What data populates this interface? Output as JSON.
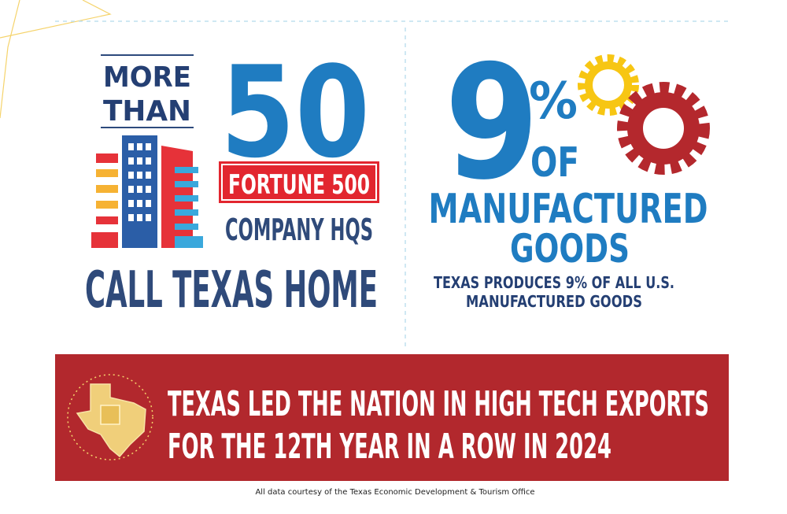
{
  "left_panel": {
    "lead": [
      "MORE",
      "THAN"
    ],
    "number": "50",
    "badge": "FORTUNE 500",
    "subject": "COMPANY HQS",
    "closing": "CALL TEXAS HOME"
  },
  "right_panel": {
    "number": "9",
    "unit": "%",
    "connector": "OF",
    "subject": [
      "MANUFACTURED",
      "GOODS"
    ],
    "caption": [
      "TEXAS PRODUCES 9% OF ALL U.S.",
      "MANUFACTURED GOODS"
    ]
  },
  "banner": {
    "lines": [
      "TEXAS LED THE NATION IN HIGH TECH EXPORTS",
      "FOR THE 12TH YEAR IN A ROW IN 2024"
    ]
  },
  "footer": "All data courtesy of the Texas Economic Development & Tourism Office"
}
